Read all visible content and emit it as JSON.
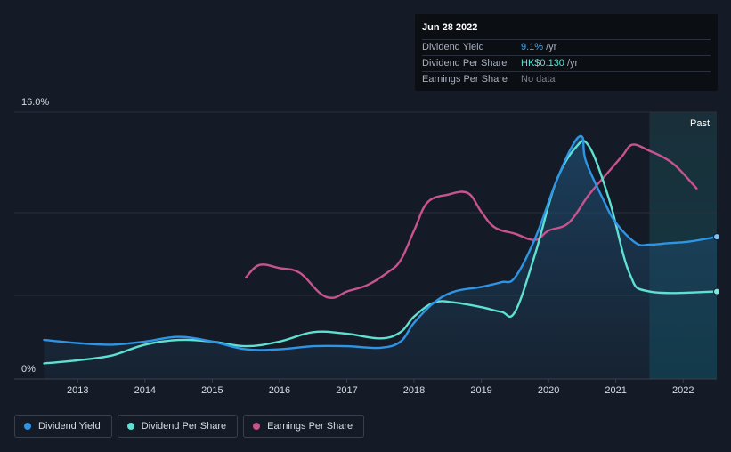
{
  "tooltip": {
    "date": "Jun 28 2022",
    "rows": [
      {
        "label": "Dividend Yield",
        "value": "9.1%",
        "unit": "/yr"
      },
      {
        "label": "Dividend Per Share",
        "value": "HK$0.130",
        "unit": "/yr"
      },
      {
        "label": "Earnings Per Share",
        "value": "No data"
      }
    ]
  },
  "legend": [
    {
      "label": "Dividend Yield",
      "color": "#2e95e6"
    },
    {
      "label": "Dividend Per Share",
      "color": "#5ee0d2"
    },
    {
      "label": "Earnings Per Share",
      "color": "#c7538f"
    }
  ],
  "chart_data": {
    "type": "line",
    "ylabel_top": "16.0%",
    "ylabel_bottom": "0%",
    "past_label": "Past",
    "x_ticks": [
      "2013",
      "2014",
      "2015",
      "2016",
      "2017",
      "2018",
      "2019",
      "2020",
      "2021",
      "2022"
    ],
    "x_range": [
      2012.48,
      2022.5
    ],
    "y_range": [
      0,
      16
    ],
    "forecast_start": 2021.5,
    "series": [
      {
        "name": "Dividend Yield",
        "color": "#2e95e6",
        "unit": "%",
        "points": [
          [
            2012.5,
            2.5
          ],
          [
            2013.0,
            2.3
          ],
          [
            2013.5,
            2.2
          ],
          [
            2014.0,
            2.4
          ],
          [
            2014.5,
            2.7
          ],
          [
            2015.0,
            2.4
          ],
          [
            2015.5,
            1.9
          ],
          [
            2016.0,
            1.9
          ],
          [
            2016.5,
            2.1
          ],
          [
            2017.0,
            2.1
          ],
          [
            2017.5,
            2.0
          ],
          [
            2017.8,
            2.4
          ],
          [
            2018.0,
            3.6
          ],
          [
            2018.3,
            4.9
          ],
          [
            2018.6,
            5.6
          ],
          [
            2019.0,
            5.9
          ],
          [
            2019.3,
            6.2
          ],
          [
            2019.5,
            6.5
          ],
          [
            2019.8,
            9.0
          ],
          [
            2020.1,
            12.5
          ],
          [
            2020.35,
            14.9
          ],
          [
            2020.5,
            15.5
          ],
          [
            2020.55,
            14.0
          ],
          [
            2020.8,
            11.6
          ],
          [
            2021.0,
            10.0
          ],
          [
            2021.3,
            8.7
          ],
          [
            2021.5,
            8.6
          ],
          [
            2021.8,
            8.7
          ],
          [
            2022.1,
            8.8
          ],
          [
            2022.5,
            9.1
          ]
        ]
      },
      {
        "name": "Dividend Per Share",
        "color": "#5ee0d2",
        "unit": "HK$",
        "points": [
          [
            2012.5,
            1.0
          ],
          [
            2013.0,
            1.2
          ],
          [
            2013.5,
            1.5
          ],
          [
            2014.0,
            2.2
          ],
          [
            2014.5,
            2.5
          ],
          [
            2015.0,
            2.4
          ],
          [
            2015.5,
            2.1
          ],
          [
            2016.0,
            2.4
          ],
          [
            2016.5,
            3.0
          ],
          [
            2017.0,
            2.9
          ],
          [
            2017.5,
            2.6
          ],
          [
            2017.8,
            3.0
          ],
          [
            2018.0,
            4.0
          ],
          [
            2018.3,
            4.9
          ],
          [
            2018.6,
            4.9
          ],
          [
            2019.0,
            4.6
          ],
          [
            2019.3,
            4.3
          ],
          [
            2019.5,
            4.3
          ],
          [
            2019.8,
            8.0
          ],
          [
            2020.1,
            12.5
          ],
          [
            2020.4,
            14.8
          ],
          [
            2020.6,
            14.9
          ],
          [
            2020.9,
            11.5
          ],
          [
            2021.2,
            6.8
          ],
          [
            2021.5,
            5.6
          ],
          [
            2022.5,
            5.6
          ]
        ]
      },
      {
        "name": "Earnings Per Share",
        "color": "#c7538f",
        "unit": "HK$",
        "points": [
          [
            2015.5,
            6.5
          ],
          [
            2015.7,
            7.3
          ],
          [
            2016.0,
            7.1
          ],
          [
            2016.3,
            6.8
          ],
          [
            2016.6,
            5.5
          ],
          [
            2016.8,
            5.2
          ],
          [
            2017.0,
            5.6
          ],
          [
            2017.3,
            6.0
          ],
          [
            2017.6,
            6.8
          ],
          [
            2017.8,
            7.6
          ],
          [
            2018.0,
            9.5
          ],
          [
            2018.2,
            11.3
          ],
          [
            2018.5,
            11.8
          ],
          [
            2018.8,
            11.9
          ],
          [
            2019.0,
            10.7
          ],
          [
            2019.2,
            9.7
          ],
          [
            2019.5,
            9.3
          ],
          [
            2019.8,
            8.9
          ],
          [
            2020.0,
            9.5
          ],
          [
            2020.3,
            10.0
          ],
          [
            2020.6,
            11.8
          ],
          [
            2020.9,
            13.3
          ],
          [
            2021.1,
            14.3
          ],
          [
            2021.25,
            15.0
          ],
          [
            2021.5,
            14.6
          ],
          [
            2021.7,
            14.2
          ],
          [
            2021.9,
            13.6
          ],
          [
            2022.2,
            12.2
          ]
        ]
      }
    ]
  }
}
